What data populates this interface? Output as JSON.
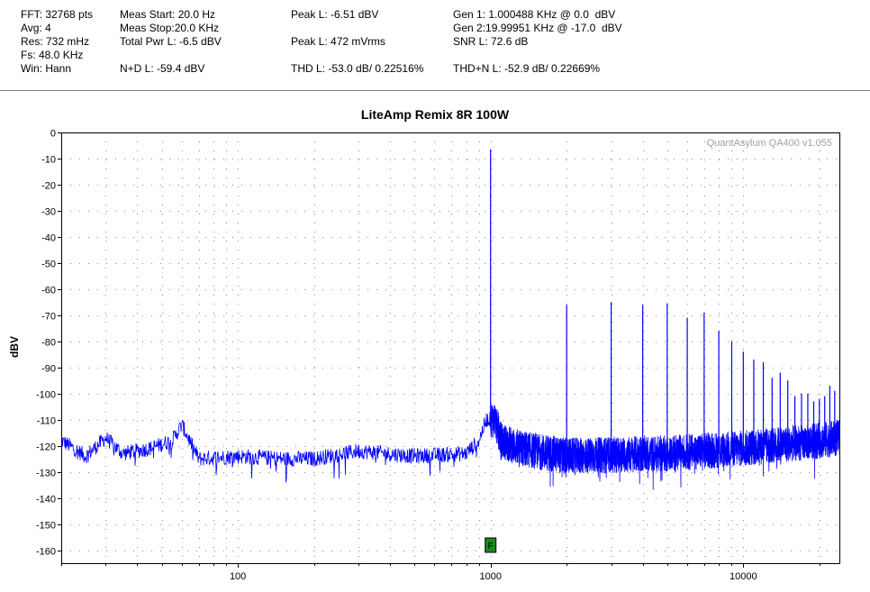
{
  "header": {
    "fft": "FFT: 32768 pts",
    "avg": "Avg: 4",
    "res": "Res: 732 mHz",
    "fs": "Fs: 48.0 KHz",
    "win": "Win: Hann",
    "meas_start": "Meas Start: 20.0 Hz",
    "meas_stop": "Meas Stop:20.0 KHz",
    "total_pwr": "Total Pwr L: -6.5 dBV",
    "nd": "N+D L: -59.4 dBV",
    "peak_l_dbv": "Peak L: -6.51 dBV",
    "peak_l_mv": "Peak L: 472 mVrms",
    "thd": "THD L: -53.0 dB/ 0.22516%",
    "gen1": "Gen 1: 1.000488 KHz @ 0.0  dBV",
    "gen2": "Gen 2:19.99951 KHz @ -17.0  dBV",
    "snr": "SNR L: 72.6 dB",
    "thdn": "THD+N L: -52.9 dB/ 0.22669%"
  },
  "chart_data": {
    "type": "line",
    "title": "LiteAmp Remix 8R 100W",
    "ylabel": "dBV",
    "xlabel": "",
    "x_scale": "log",
    "xlim": [
      20,
      24000
    ],
    "ylim": [
      -165,
      0
    ],
    "grid": true,
    "watermark": "QuantAsylum QA400 v1.055",
    "marker_label": "F",
    "marker_x": 1000,
    "x_ticks": [
      "100",
      "1000",
      "10000"
    ],
    "y_ticks": [
      "0",
      "-10",
      "-20",
      "-30",
      "-40",
      "-50",
      "-60",
      "-70",
      "-80",
      "-90",
      "-100",
      "-110",
      "-120",
      "-130",
      "-140",
      "-150",
      "-160"
    ],
    "series_color": "#0000ff",
    "fundamental": {
      "x": 1000,
      "y": -6.5
    },
    "harmonics": [
      {
        "x": 2000,
        "y": -66
      },
      {
        "x": 3000,
        "y": -65
      },
      {
        "x": 4000,
        "y": -66
      },
      {
        "x": 5000,
        "y": -65.5
      },
      {
        "x": 6000,
        "y": -71
      },
      {
        "x": 7000,
        "y": -69
      },
      {
        "x": 8000,
        "y": -76
      },
      {
        "x": 9000,
        "y": -80
      },
      {
        "x": 10000,
        "y": -84
      },
      {
        "x": 11000,
        "y": -87
      },
      {
        "x": 12000,
        "y": -88
      },
      {
        "x": 13000,
        "y": -94
      },
      {
        "x": 14000,
        "y": -92
      },
      {
        "x": 15000,
        "y": -95
      },
      {
        "x": 16000,
        "y": -101
      },
      {
        "x": 17000,
        "y": -100
      },
      {
        "x": 18000,
        "y": -100
      },
      {
        "x": 19000,
        "y": -103
      },
      {
        "x": 20000,
        "y": -102
      },
      {
        "x": 21000,
        "y": -101
      },
      {
        "x": 22000,
        "y": -97
      },
      {
        "x": 23000,
        "y": -99
      }
    ],
    "noise_floor": [
      {
        "x": 20,
        "y": -118
      },
      {
        "x": 25,
        "y": -124
      },
      {
        "x": 30,
        "y": -117
      },
      {
        "x": 35,
        "y": -123
      },
      {
        "x": 45,
        "y": -121
      },
      {
        "x": 55,
        "y": -118
      },
      {
        "x": 60,
        "y": -112
      },
      {
        "x": 70,
        "y": -125
      },
      {
        "x": 100,
        "y": -124
      },
      {
        "x": 150,
        "y": -125
      },
      {
        "x": 200,
        "y": -125
      },
      {
        "x": 300,
        "y": -122
      },
      {
        "x": 500,
        "y": -124
      },
      {
        "x": 800,
        "y": -123
      },
      {
        "x": 900,
        "y": -118
      },
      {
        "x": 960,
        "y": -110
      },
      {
        "x": 1040,
        "y": -110
      },
      {
        "x": 1100,
        "y": -118
      },
      {
        "x": 1300,
        "y": -121
      },
      {
        "x": 2000,
        "y": -124
      },
      {
        "x": 5000,
        "y": -123
      },
      {
        "x": 10000,
        "y": -121
      },
      {
        "x": 20000,
        "y": -118
      },
      {
        "x": 24000,
        "y": -117
      }
    ]
  }
}
